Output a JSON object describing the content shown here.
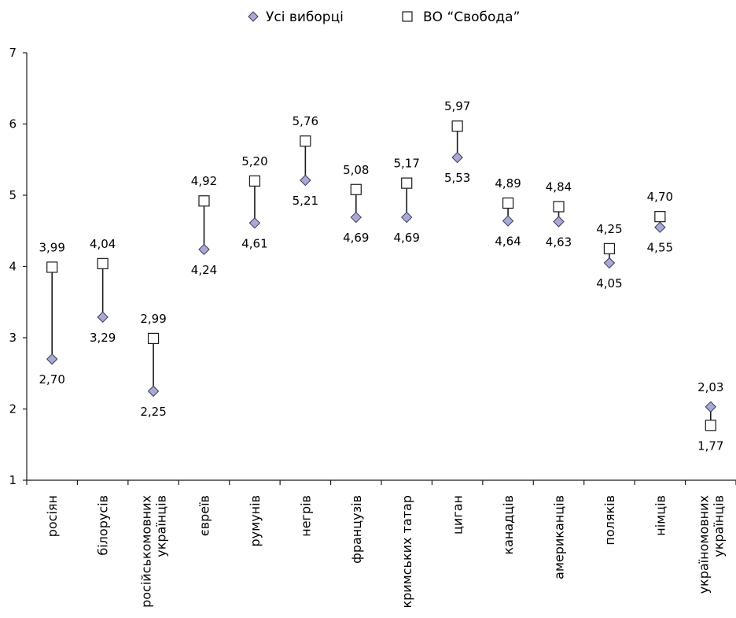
{
  "chart_data": {
    "type": "scatter",
    "title": "",
    "xlabel": "",
    "ylabel": "",
    "ylim": [
      1,
      7
    ],
    "yticks": [
      "1",
      "2",
      "3",
      "4",
      "5",
      "6",
      "7"
    ],
    "grid": false,
    "legend_position": "top-center",
    "categories": [
      [
        "росіян"
      ],
      [
        "білорусів"
      ],
      [
        "російськомовних",
        "українців"
      ],
      [
        "євреїв"
      ],
      [
        "румунів"
      ],
      [
        "негрів"
      ],
      [
        "французів"
      ],
      [
        "кримських татар"
      ],
      [
        "циган"
      ],
      [
        "канадців"
      ],
      [
        "американців"
      ],
      [
        "поляків"
      ],
      [
        "німців"
      ],
      [
        "україномовних",
        "українців"
      ]
    ],
    "series": [
      {
        "name": "Усі виборці",
        "marker": "diamond",
        "color": "#A9A9D6",
        "values": [
          2.7,
          3.29,
          2.25,
          4.24,
          4.61,
          5.21,
          4.69,
          4.69,
          5.53,
          4.64,
          4.63,
          4.05,
          4.55,
          2.03
        ],
        "labels": [
          "2,70",
          "3,29",
          "2,25",
          "4,24",
          "4,61",
          "5,21",
          "4,69",
          "4,69",
          "5,53",
          "4,64",
          "4,63",
          "4,05",
          "4,55",
          "2,03"
        ]
      },
      {
        "name": "ВО “Свобода”",
        "marker": "square",
        "color": "#FFFFFF",
        "values": [
          3.99,
          4.04,
          2.99,
          4.92,
          5.2,
          5.76,
          5.08,
          5.17,
          5.97,
          4.89,
          4.84,
          4.25,
          4.7,
          1.77
        ],
        "labels": [
          "3,99",
          "4,04",
          "2,99",
          "4,92",
          "5,20",
          "5,76",
          "5,08",
          "5,17",
          "5,97",
          "4,89",
          "4,84",
          "4,25",
          "4,70",
          "1,77"
        ]
      }
    ]
  }
}
